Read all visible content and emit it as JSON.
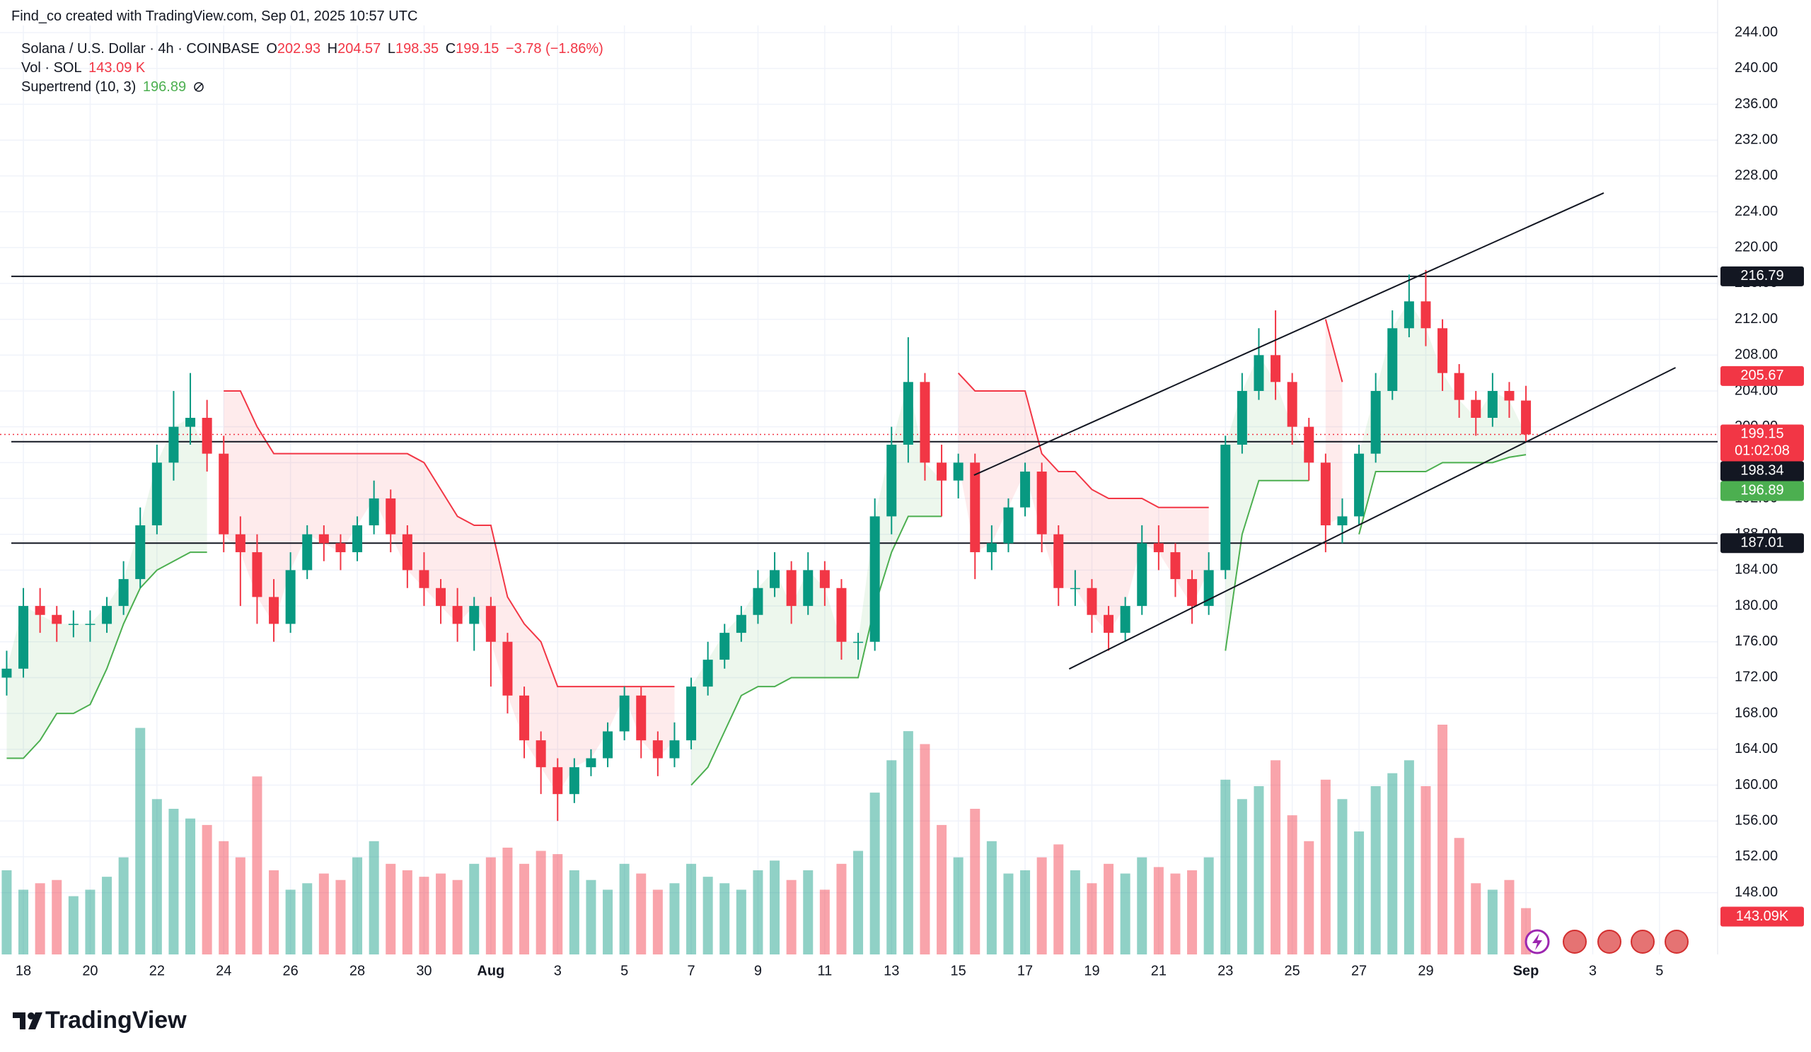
{
  "header": {
    "attribution": "Find_co created with TradingView.com, Sep 01, 2025 10:57 UTC",
    "logo_text": "TradingView"
  },
  "chart_data": {
    "type": "candlestick",
    "title": "Solana / U.S. Dollar · 4h · COINBASE",
    "legend_keys": [
      "O",
      "H",
      "L",
      "C"
    ],
    "change_label": "−3.78 (−1.86%)",
    "up_color": "#089981",
    "down_color": "#f23645",
    "x": [
      17.5,
      18,
      18.5,
      19,
      19.5,
      20,
      20.5,
      21,
      21.5,
      22,
      22.5,
      23,
      23.5,
      24,
      24.5,
      25,
      25.5,
      26,
      26.5,
      27,
      27.5,
      28,
      28.5,
      29,
      29.5,
      30,
      30.5,
      31,
      31.5,
      32,
      32.5,
      33,
      33.5,
      34,
      34.5,
      35,
      35.5,
      36,
      36.5,
      37,
      37.5,
      38,
      38.5,
      39,
      39.5,
      40,
      40.5,
      41,
      41.5,
      42,
      42.5,
      43,
      43.5,
      44,
      44.5,
      45,
      45.5,
      46,
      46.5,
      47,
      47.5,
      48,
      48.5,
      49,
      49.5,
      50,
      50.5,
      51,
      51.5,
      52,
      52.5,
      53,
      53.5,
      54,
      54.5,
      55,
      55.5,
      56,
      56.5,
      57,
      57.5,
      58,
      58.5,
      59,
      59.5,
      60,
      60.5,
      61,
      61.5,
      62,
      62.5,
      63
    ],
    "open": [
      172,
      173,
      180,
      179,
      178,
      178,
      178,
      180,
      183,
      189,
      196,
      200,
      201,
      197,
      188,
      186,
      181,
      178,
      184,
      188,
      187,
      186,
      189,
      192,
      188,
      184,
      182,
      180,
      178,
      180,
      176,
      170,
      165,
      162,
      159,
      162,
      163,
      166,
      170,
      165,
      163,
      165,
      171,
      174,
      177,
      179,
      182,
      184,
      180,
      184,
      182,
      176,
      176,
      190,
      198,
      205,
      196,
      194,
      196,
      186,
      187,
      191,
      195,
      188,
      182,
      182,
      179,
      177,
      180,
      187,
      186,
      183,
      180,
      184,
      198,
      204,
      208,
      205,
      200,
      196,
      189,
      190,
      197,
      204,
      211,
      214,
      211,
      206,
      203,
      201,
      204,
      202.93
    ],
    "high": [
      175,
      182,
      182,
      180,
      179.5,
      179.5,
      181,
      185,
      191,
      198,
      204,
      206,
      203,
      199,
      190,
      188,
      183,
      186,
      189,
      189,
      188,
      190,
      194,
      193,
      189,
      186,
      183,
      182,
      181,
      181,
      177,
      171,
      166,
      163,
      163,
      164,
      167,
      171,
      171,
      166,
      167,
      172,
      176,
      178,
      180,
      184,
      186,
      185,
      186,
      185,
      183,
      177,
      192,
      200,
      210,
      206,
      198,
      197,
      197,
      189,
      192,
      196,
      196,
      189,
      184,
      183,
      180,
      181,
      189,
      189,
      187,
      184,
      186,
      199,
      206,
      211,
      213,
      206,
      201,
      197,
      192,
      198,
      206,
      213,
      217,
      217.5,
      212,
      207,
      204,
      206,
      205,
      204.57
    ],
    "low": [
      170,
      172,
      177,
      176,
      176.5,
      176,
      177,
      179,
      182,
      188,
      194,
      198,
      195,
      186,
      180,
      178,
      176,
      177,
      183,
      185,
      184,
      185,
      188,
      186,
      182,
      180,
      178,
      176,
      175,
      171,
      168,
      163,
      159,
      156,
      158,
      161,
      162,
      165,
      163,
      161,
      162,
      164,
      170,
      173,
      176,
      178,
      181,
      178,
      179,
      180,
      174,
      174,
      175,
      188,
      196,
      194,
      190,
      192,
      183,
      184,
      186,
      190,
      186,
      180,
      180,
      177,
      175,
      176,
      179,
      184,
      181,
      178,
      179,
      183,
      197,
      203,
      203,
      198,
      194,
      186,
      187,
      189,
      196,
      203,
      210,
      209,
      204,
      201,
      199,
      200,
      201,
      198.35
    ],
    "close": [
      173,
      180,
      179,
      178,
      178,
      178,
      180,
      183,
      189,
      196,
      200,
      201,
      197,
      188,
      186,
      181,
      178,
      184,
      188,
      187,
      186,
      189,
      192,
      188,
      184,
      182,
      180,
      178,
      180,
      176,
      170,
      165,
      162,
      159,
      162,
      163,
      166,
      170,
      165,
      163,
      165,
      171,
      174,
      177,
      179,
      182,
      184,
      180,
      184,
      182,
      176,
      176,
      190,
      198,
      205,
      196,
      194,
      196,
      186,
      187,
      191,
      195,
      188,
      182,
      182,
      179,
      177,
      180,
      187,
      186,
      183,
      180,
      184,
      198,
      204,
      208,
      205,
      200,
      196,
      189,
      190,
      197,
      204,
      211,
      214,
      211,
      206,
      203,
      201,
      204,
      202.93,
      199.15
    ],
    "volume": {
      "name": "Vol · SOL",
      "legend_value": "143.09 K",
      "axis_label": "143.09K",
      "values": [
        260,
        200,
        220,
        230,
        180,
        200,
        240,
        300,
        700,
        480,
        450,
        420,
        400,
        350,
        300,
        550,
        260,
        200,
        220,
        250,
        230,
        300,
        350,
        280,
        260,
        240,
        250,
        230,
        280,
        300,
        330,
        280,
        320,
        310,
        260,
        230,
        200,
        280,
        250,
        200,
        220,
        280,
        240,
        220,
        200,
        260,
        290,
        230,
        260,
        200,
        280,
        320,
        500,
        600,
        690,
        650,
        400,
        300,
        450,
        350,
        250,
        260,
        300,
        340,
        260,
        220,
        280,
        250,
        300,
        270,
        250,
        260,
        300,
        540,
        480,
        520,
        600,
        430,
        350,
        540,
        480,
        380,
        520,
        560,
        600,
        520,
        710,
        360,
        220,
        200,
        230,
        143.09
      ]
    },
    "supertrend": {
      "name": "Supertrend (10, 3)",
      "up_color": "#4caf50",
      "down_color": "#f23645",
      "up": [
        163,
        163,
        165,
        168,
        168,
        169,
        173,
        178,
        182,
        184,
        185,
        186,
        186,
        null,
        null,
        null,
        null,
        null,
        null,
        null,
        null,
        null,
        null,
        null,
        null,
        null,
        null,
        null,
        null,
        null,
        null,
        null,
        null,
        null,
        null,
        null,
        null,
        null,
        null,
        null,
        null,
        160,
        162,
        166,
        170,
        171,
        171,
        172,
        172,
        172,
        172,
        172,
        180,
        186,
        190,
        190,
        190,
        null,
        null,
        null,
        null,
        null,
        null,
        null,
        null,
        null,
        null,
        null,
        null,
        null,
        null,
        null,
        null,
        175,
        188,
        194,
        194,
        194,
        194,
        null,
        null,
        188,
        195,
        195,
        195,
        195,
        196,
        196,
        196,
        196,
        196.6,
        196.89
      ],
      "down": [
        null,
        null,
        null,
        null,
        null,
        null,
        null,
        null,
        null,
        null,
        null,
        null,
        null,
        204,
        204,
        200,
        197,
        197,
        197,
        197,
        197,
        197,
        197,
        197,
        197,
        196,
        193,
        190,
        189,
        189,
        181,
        178,
        176,
        171,
        171,
        171,
        171,
        171,
        171,
        171,
        171,
        null,
        null,
        null,
        null,
        null,
        null,
        null,
        null,
        null,
        null,
        null,
        null,
        null,
        null,
        null,
        null,
        206,
        204,
        204,
        204,
        204,
        197,
        195,
        195,
        193,
        192,
        192,
        192,
        191,
        191,
        191,
        191,
        null,
        null,
        null,
        null,
        null,
        null,
        212,
        205,
        null,
        null,
        null,
        null,
        null,
        null,
        null,
        null,
        null,
        null,
        null
      ]
    },
    "hlines": [
      216.79,
      198.34,
      187.01
    ],
    "price_marks": [
      {
        "value": 205.67,
        "color": "#f23645"
      }
    ],
    "countdown": "01:02:08",
    "channel": [
      {
        "start": [
          46.47,
          194.6
        ],
        "end": [
          65.33,
          226.1
        ]
      },
      {
        "start": [
          49.32,
          172.97
        ],
        "end": [
          67.48,
          206.6
        ]
      }
    ],
    "xlim": [
      17.3,
      68.74
    ],
    "ylim": [
      141.1,
      244.8
    ],
    "grid": true,
    "xticks": [
      {
        "value": 18,
        "label": "18"
      },
      {
        "value": 20,
        "label": "20"
      },
      {
        "value": 22,
        "label": "22"
      },
      {
        "value": 24,
        "label": "24"
      },
      {
        "value": 26,
        "label": "26"
      },
      {
        "value": 28,
        "label": "28"
      },
      {
        "value": 30,
        "label": "30"
      },
      {
        "value": 32,
        "label": "Aug"
      },
      {
        "value": 34,
        "label": "3"
      },
      {
        "value": 36,
        "label": "5"
      },
      {
        "value": 38,
        "label": "7"
      },
      {
        "value": 40,
        "label": "9"
      },
      {
        "value": 42,
        "label": "11"
      },
      {
        "value": 44,
        "label": "13"
      },
      {
        "value": 46,
        "label": "15"
      },
      {
        "value": 48,
        "label": "17"
      },
      {
        "value": 50,
        "label": "19"
      },
      {
        "value": 52,
        "label": "21"
      },
      {
        "value": 54,
        "label": "23"
      },
      {
        "value": 56,
        "label": "25"
      },
      {
        "value": 58,
        "label": "27"
      },
      {
        "value": 60,
        "label": "29"
      },
      {
        "value": 63,
        "label": "Sep"
      },
      {
        "value": 65,
        "label": "3"
      },
      {
        "value": 67,
        "label": "5"
      }
    ],
    "yticks": [
      {
        "value": 148,
        "label": "148.00"
      },
      {
        "value": 152,
        "label": "152.00"
      },
      {
        "value": 156,
        "label": "156.00"
      },
      {
        "value": 160,
        "label": "160.00"
      },
      {
        "value": 164,
        "label": "164.00"
      },
      {
        "value": 168,
        "label": "168.00"
      },
      {
        "value": 172,
        "label": "172.00"
      },
      {
        "value": 176,
        "label": "176.00"
      },
      {
        "value": 180,
        "label": "180.00"
      },
      {
        "value": 184,
        "label": "184.00"
      },
      {
        "value": 188,
        "label": "188.00"
      },
      {
        "value": 192,
        "label": "192.00"
      },
      {
        "value": 196,
        "label": "196.00"
      },
      {
        "value": 200,
        "label": "200.00"
      },
      {
        "value": 204,
        "label": "204.00"
      },
      {
        "value": 208,
        "label": "208.00"
      },
      {
        "value": 212,
        "label": "212.00"
      },
      {
        "value": 216,
        "label": "216.00"
      },
      {
        "value": 220,
        "label": "220.00"
      },
      {
        "value": 224,
        "label": "224.00"
      },
      {
        "value": 228,
        "label": "228.00"
      },
      {
        "value": 232,
        "label": "232.00"
      },
      {
        "value": 236,
        "label": "236.00"
      },
      {
        "value": 240,
        "label": "240.00"
      },
      {
        "value": 244,
        "label": "244.00"
      }
    ]
  }
}
